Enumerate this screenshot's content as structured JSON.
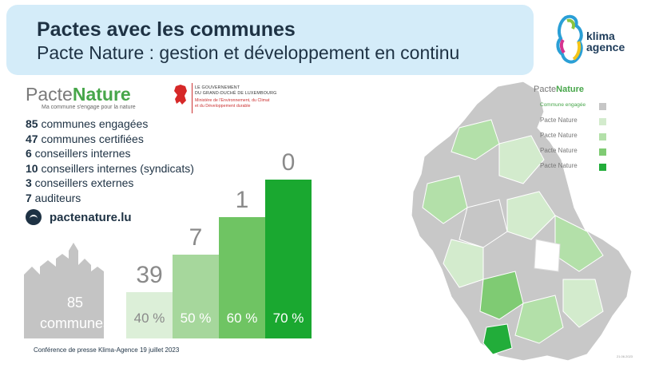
{
  "header": {
    "title": "Pactes avec les communes",
    "subtitle": "Pacte Nature : gestion et développement en continu"
  },
  "brand": {
    "klima_line1": "klima",
    "klima_line2": "agence",
    "pacte_prefix": "Pacte",
    "pacte_suffix": "Nature",
    "pacte_tagline": "Ma commune s'engage pour la nature",
    "gov_line1": "LE GOUVERNEMENT",
    "gov_line2": "DU GRAND-DUCHÉ DE LUXEMBOURG",
    "gov_line3": "Ministère de l'Environnement, du Climat",
    "gov_line4": "et du Développement durable"
  },
  "stats": [
    {
      "num": "85",
      "text": " communes engagées"
    },
    {
      "num": "47",
      "text": " communes certifiées"
    },
    {
      "num": "6",
      "text": " conseillers internes"
    },
    {
      "num": "10",
      "text": " conseillers internes (syndicats)"
    },
    {
      "num": "3",
      "text": " conseillers externes"
    },
    {
      "num": "7",
      "text": " auditeurs"
    }
  ],
  "website": "pactenature.lu",
  "chart_data": {
    "type": "bar",
    "title": "",
    "base_label": "85 communes",
    "base_count": "85",
    "base_text": "communes",
    "categories": [
      "40 %",
      "50 %",
      "60 %",
      "70 %"
    ],
    "values": [
      39,
      7,
      1,
      0
    ],
    "colors": [
      "#dcefd8",
      "#a6d79c",
      "#6fc463",
      "#1aa830"
    ]
  },
  "footer": "Conférence de presse Klima-Agence 19 juillet 2023",
  "map": {
    "legend_head": "Commune engagée",
    "legend_items": [
      "Pacte Nature",
      "Pacte Nature",
      "Pacte Nature",
      "Pacte Nature"
    ],
    "legend_colors": [
      "#c6c6c6",
      "#d3ebcd",
      "#b3e0a9",
      "#7fcb73",
      "#22ad3a"
    ],
    "date": "21.06.2023"
  }
}
